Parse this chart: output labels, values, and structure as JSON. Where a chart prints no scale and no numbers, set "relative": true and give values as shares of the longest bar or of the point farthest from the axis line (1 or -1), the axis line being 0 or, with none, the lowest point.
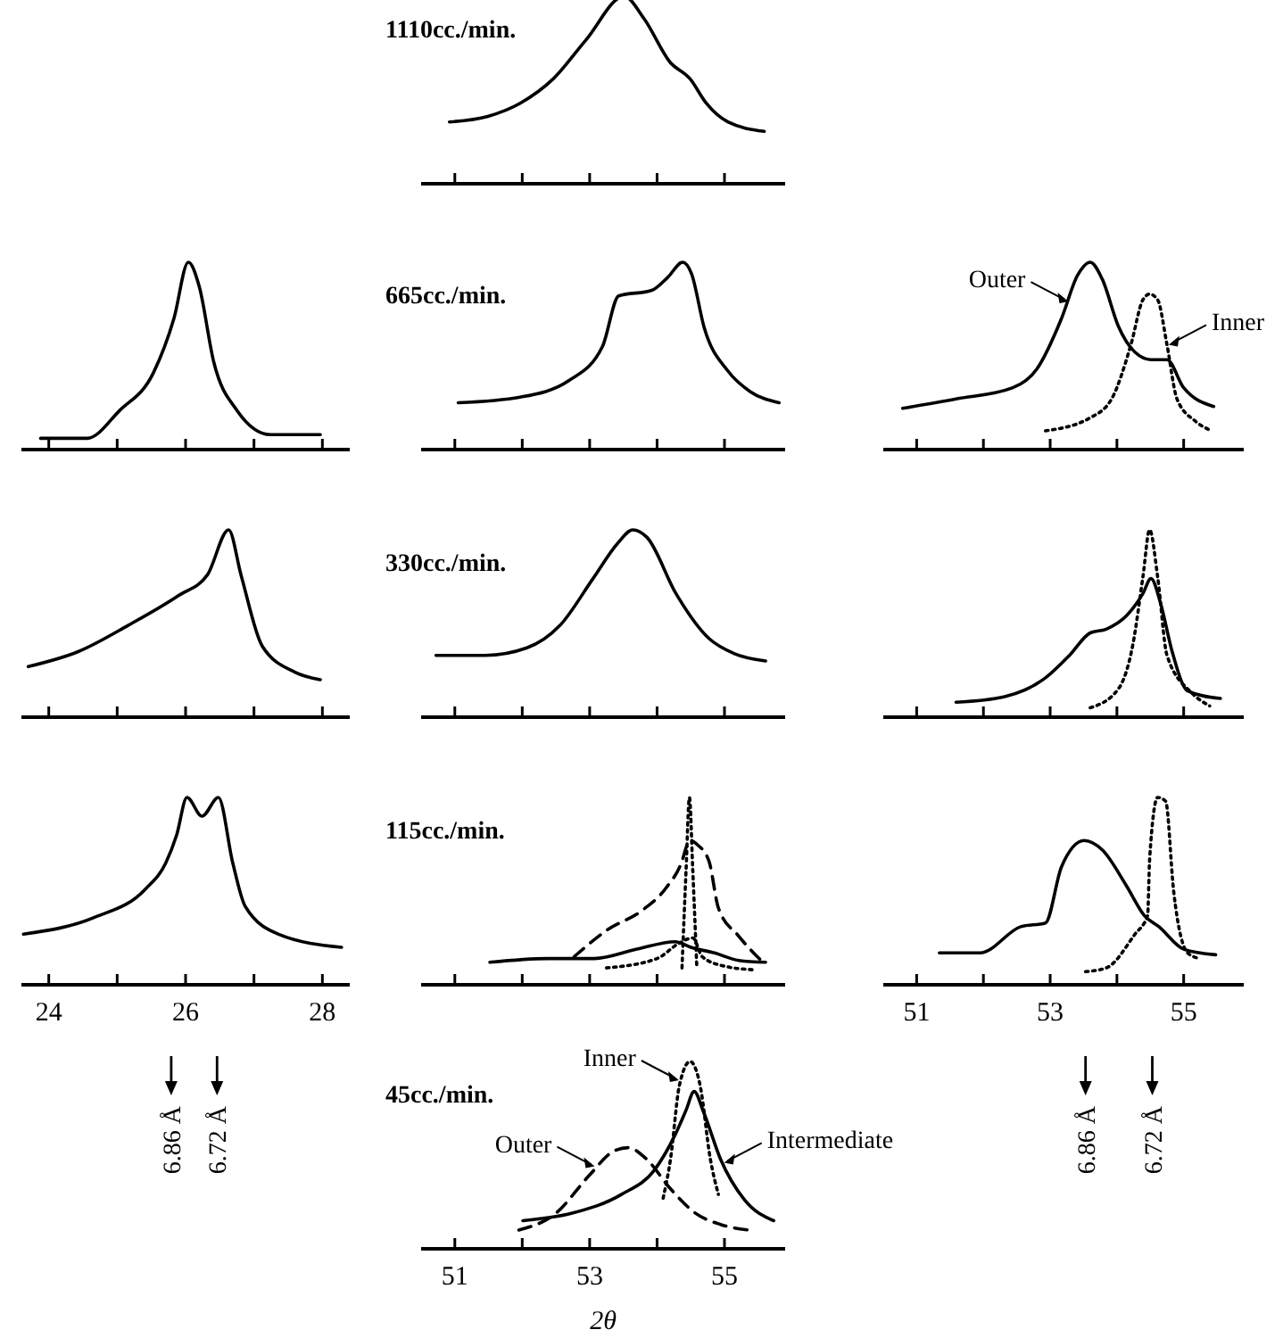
{
  "chart_data": [
    {
      "type": "line",
      "relative": true,
      "title": "1110cc./min.",
      "xlim": [
        50.5,
        55.9
      ],
      "xticks": [
        51,
        52,
        53,
        54,
        55
      ],
      "tick_labels": false,
      "series": [
        {
          "color": "#000000",
          "line_style": "solid",
          "x": [
            50.92,
            51.49,
            51.97,
            52.46,
            52.95,
            53.51,
            53.81,
            54.19,
            54.49,
            54.73,
            55.05,
            55.59
          ],
          "values": [
            0.33,
            0.36,
            0.43,
            0.56,
            0.77,
            1,
            0.88,
            0.65,
            0.56,
            0.43,
            0.33,
            0.28
          ]
        }
      ]
    },
    {
      "type": "line",
      "relative": true,
      "xlim": [
        23.6,
        28.4
      ],
      "xticks": [
        24,
        25,
        26,
        27,
        28
      ],
      "tick_labels": false,
      "series": [
        {
          "color": "#000000",
          "line_style": "solid",
          "x": [
            23.88,
            24.56,
            25.04,
            25.53,
            25.83,
            26.04,
            26.2,
            26.41,
            26.75,
            27.24,
            27.97
          ],
          "values": [
            0.06,
            0.06,
            0.21,
            0.41,
            0.7,
            1,
            0.87,
            0.47,
            0.21,
            0.08,
            0.08
          ]
        }
      ]
    },
    {
      "type": "line",
      "relative": true,
      "title": "665cc./min.",
      "xlim": [
        50.5,
        55.9
      ],
      "xticks": [
        51,
        52,
        53,
        54,
        55
      ],
      "tick_labels": false,
      "series": [
        {
          "color": "#000000",
          "line_style": "solid",
          "x": [
            51.05,
            51.97,
            52.7,
            53.19,
            53.43,
            53.92,
            54.16,
            54.38,
            54.51,
            54.7,
            55.05,
            55.38,
            55.81
          ],
          "values": [
            0.25,
            0.28,
            0.37,
            0.55,
            0.82,
            0.85,
            0.92,
            1,
            0.94,
            0.65,
            0.42,
            0.31,
            0.25
          ]
        }
      ]
    },
    {
      "type": "line",
      "relative": true,
      "xlim": [
        50.5,
        55.9
      ],
      "xticks": [
        51,
        52,
        53,
        54,
        55
      ],
      "tick_labels": false,
      "annotations": [
        {
          "text": "Outer",
          "x": 53.3,
          "y": 0.79
        },
        {
          "text": "Inner",
          "x": 54.75,
          "y": 0.56
        }
      ],
      "series": [
        {
          "color": "#000000",
          "line_style": "solid",
          "x": [
            50.79,
            51.59,
            52.44,
            52.8,
            53.17,
            53.41,
            53.6,
            53.78,
            54.02,
            54.27,
            54.51,
            54.75,
            55,
            55.45
          ],
          "values": [
            0.22,
            0.27,
            0.33,
            0.43,
            0.7,
            0.93,
            1,
            0.91,
            0.66,
            0.52,
            0.48,
            0.48,
            0.33,
            0.23
          ]
        },
        {
          "color": "#000000",
          "line_style": "dotted",
          "x": [
            52.93,
            53.6,
            53.92,
            54.21,
            54.39,
            54.49,
            54.61,
            54.75,
            54.9,
            55.18,
            55.42
          ],
          "values": [
            0.1,
            0.17,
            0.27,
            0.56,
            0.8,
            0.83,
            0.8,
            0.56,
            0.27,
            0.15,
            0.1
          ]
        }
      ]
    },
    {
      "type": "line",
      "relative": true,
      "xlim": [
        23.6,
        28.4
      ],
      "xticks": [
        24,
        25,
        26,
        27,
        28
      ],
      "tick_labels": false,
      "series": [
        {
          "color": "#000000",
          "line_style": "solid",
          "x": [
            23.7,
            24.43,
            25.16,
            25.9,
            26.32,
            26.63,
            26.81,
            27.12,
            27.6,
            27.97
          ],
          "values": [
            0.27,
            0.35,
            0.49,
            0.65,
            0.76,
            1,
            0.76,
            0.38,
            0.24,
            0.2
          ]
        }
      ]
    },
    {
      "type": "line",
      "relative": true,
      "title": "330cc./min.",
      "xlim": [
        50.5,
        55.9
      ],
      "xticks": [
        51,
        52,
        53,
        54,
        55
      ],
      "tick_labels": false,
      "series": [
        {
          "color": "#000000",
          "line_style": "solid",
          "x": [
            50.72,
            51.45,
            52.07,
            52.56,
            53.05,
            53.42,
            53.64,
            53.85,
            54.28,
            54.77,
            55.14,
            55.61
          ],
          "values": [
            0.33,
            0.33,
            0.37,
            0.49,
            0.74,
            0.93,
            1,
            0.96,
            0.66,
            0.42,
            0.34,
            0.3
          ]
        }
      ]
    },
    {
      "type": "line",
      "relative": true,
      "xlim": [
        50.5,
        55.9
      ],
      "xticks": [
        51,
        52,
        53,
        54,
        55
      ],
      "tick_labels": false,
      "series": [
        {
          "color": "#000000",
          "line_style": "solid",
          "x": [
            51.59,
            52.32,
            52.93,
            53.29,
            53.6,
            53.84,
            54.14,
            54.39,
            54.51,
            54.66,
            54.82,
            55.06,
            55.55
          ],
          "values": [
            0.08,
            0.11,
            0.21,
            0.33,
            0.45,
            0.47,
            0.54,
            0.66,
            0.74,
            0.6,
            0.36,
            0.14,
            0.1
          ]
        },
        {
          "color": "#000000",
          "line_style": "dotted",
          "x": [
            53.6,
            54.02,
            54.24,
            54.39,
            54.49,
            54.61,
            54.75,
            55.12,
            55.39
          ],
          "values": [
            0.05,
            0.15,
            0.39,
            0.75,
            1,
            0.75,
            0.33,
            0.13,
            0.06
          ]
        }
      ]
    },
    {
      "type": "line",
      "relative": true,
      "xlim": [
        23.6,
        28.4
      ],
      "xticks": [
        24,
        {
          "value": 25,
          "label": null
        },
        26,
        {
          "value": 27,
          "label": null
        },
        28
      ],
      "tick_labels": "x",
      "ref_lines": [
        {
          "axis": "x",
          "value": 25.79,
          "label": "6.86 Å"
        },
        {
          "axis": "x",
          "value": 26.46,
          "label": "6.72 Å"
        }
      ],
      "series": [
        {
          "color": "#000000",
          "line_style": "solid",
          "x": [
            23.63,
            24.67,
            25.41,
            25.71,
            25.87,
            26.02,
            26.24,
            26.48,
            26.69,
            26.87,
            27.36,
            28.28
          ],
          "values": [
            0.27,
            0.36,
            0.51,
            0.65,
            0.8,
            1,
            0.9,
            1,
            0.65,
            0.42,
            0.27,
            0.2
          ]
        }
      ]
    },
    {
      "type": "line",
      "relative": true,
      "title": "115cc./min.",
      "xlim": [
        50.5,
        55.9
      ],
      "xticks": [
        51,
        52,
        53,
        54,
        55
      ],
      "tick_labels": false,
      "series": [
        {
          "color": "#000000",
          "line_style": "solid",
          "x": [
            51.52,
            52.37,
            53.07,
            53.7,
            54.27,
            54.5,
            54.85,
            55.21,
            55.61
          ],
          "values": [
            0.12,
            0.14,
            0.14,
            0.19,
            0.23,
            0.2,
            0.17,
            0.13,
            0.12
          ]
        },
        {
          "color": "#000000",
          "line_style": "dashed",
          "x": [
            52.77,
            53.25,
            53.79,
            54.14,
            54.37,
            54.45,
            54.5,
            54.59,
            54.77,
            54.91,
            55.21,
            55.57
          ],
          "values": [
            0.15,
            0.29,
            0.4,
            0.52,
            0.66,
            0.75,
            0.77,
            0.75,
            0.66,
            0.41,
            0.26,
            0.12
          ]
        },
        {
          "color": "#000000",
          "line_style": "dotted",
          "x": [
            54.37,
            54.43,
            54.48,
            54.53,
            54.59
          ],
          "values": [
            0.09,
            0.61,
            1,
            0.61,
            0.09
          ]
        },
        {
          "color": "#000000",
          "line_style": "dotted",
          "x": [
            53.25,
            54.0,
            54.32,
            54.53,
            54.67,
            54.99,
            55.43
          ],
          "values": [
            0.09,
            0.14,
            0.22,
            0.25,
            0.15,
            0.1,
            0.08
          ]
        }
      ]
    },
    {
      "type": "line",
      "relative": true,
      "xlim": [
        50.5,
        55.9
      ],
      "xticks": [
        51,
        {
          "value": 52,
          "label": null
        },
        53,
        {
          "value": 54,
          "label": null
        },
        55
      ],
      "tick_labels": "x",
      "ref_lines": [
        {
          "axis": "x",
          "value": 53.53,
          "label": "6.86 Å"
        },
        {
          "axis": "x",
          "value": 54.53,
          "label": "6.72 Å"
        }
      ],
      "series": [
        {
          "color": "#000000",
          "line_style": "solid",
          "x": [
            51.34,
            51.95,
            52.56,
            52.93,
            53.17,
            53.51,
            53.78,
            54.14,
            54.41,
            54.63,
            55.0,
            55.48
          ],
          "values": [
            0.17,
            0.17,
            0.31,
            0.33,
            0.63,
            0.77,
            0.72,
            0.53,
            0.37,
            0.31,
            0.19,
            0.16
          ]
        },
        {
          "color": "#000000",
          "line_style": "dotted",
          "x": [
            53.53,
            53.84,
            54.27,
            54.46,
            54.49,
            54.61,
            54.73,
            54.85,
            55.06,
            55.24
          ],
          "values": [
            0.07,
            0.09,
            0.27,
            0.37,
            0.67,
            1,
            0.98,
            0.5,
            0.17,
            0.14
          ]
        }
      ]
    },
    {
      "type": "line",
      "relative": true,
      "title": "45cc./min.",
      "xlabel": "2θ",
      "xlim": [
        50.5,
        55.9
      ],
      "xticks": [
        51,
        {
          "value": 52,
          "label": null
        },
        53,
        {
          "value": 54,
          "label": null
        },
        55
      ],
      "tick_labels": "x",
      "annotations": [
        {
          "text": "Inner",
          "x": 54.35,
          "y": 0.9
        },
        {
          "text": "Outer",
          "x": 53.1,
          "y": 0.44
        },
        {
          "text": "Intermediate",
          "x": 54.97,
          "y": 0.46
        }
      ],
      "series": [
        {
          "color": "#000000",
          "line_style": "solid",
          "x": [
            52.01,
            52.74,
            53.47,
            53.96,
            54.27,
            54.43,
            54.55,
            54.69,
            54.94,
            55.3,
            55.73
          ],
          "values": [
            0.15,
            0.19,
            0.29,
            0.42,
            0.61,
            0.74,
            0.84,
            0.73,
            0.48,
            0.26,
            0.15
          ]
        },
        {
          "color": "#000000",
          "line_style": "dashed",
          "x": [
            51.95,
            52.5,
            52.99,
            53.35,
            53.57,
            53.84,
            54.2,
            54.57,
            54.94,
            55.36
          ],
          "values": [
            0.1,
            0.19,
            0.39,
            0.52,
            0.54,
            0.48,
            0.32,
            0.19,
            0.13,
            0.1
          ]
        },
        {
          "color": "#000000",
          "line_style": "dotted",
          "x": [
            54.09,
            54.2,
            54.33,
            54.49,
            54.64,
            54.79,
            54.91
          ],
          "values": [
            0.27,
            0.48,
            0.87,
            1,
            0.87,
            0.48,
            0.29
          ]
        }
      ]
    }
  ]
}
